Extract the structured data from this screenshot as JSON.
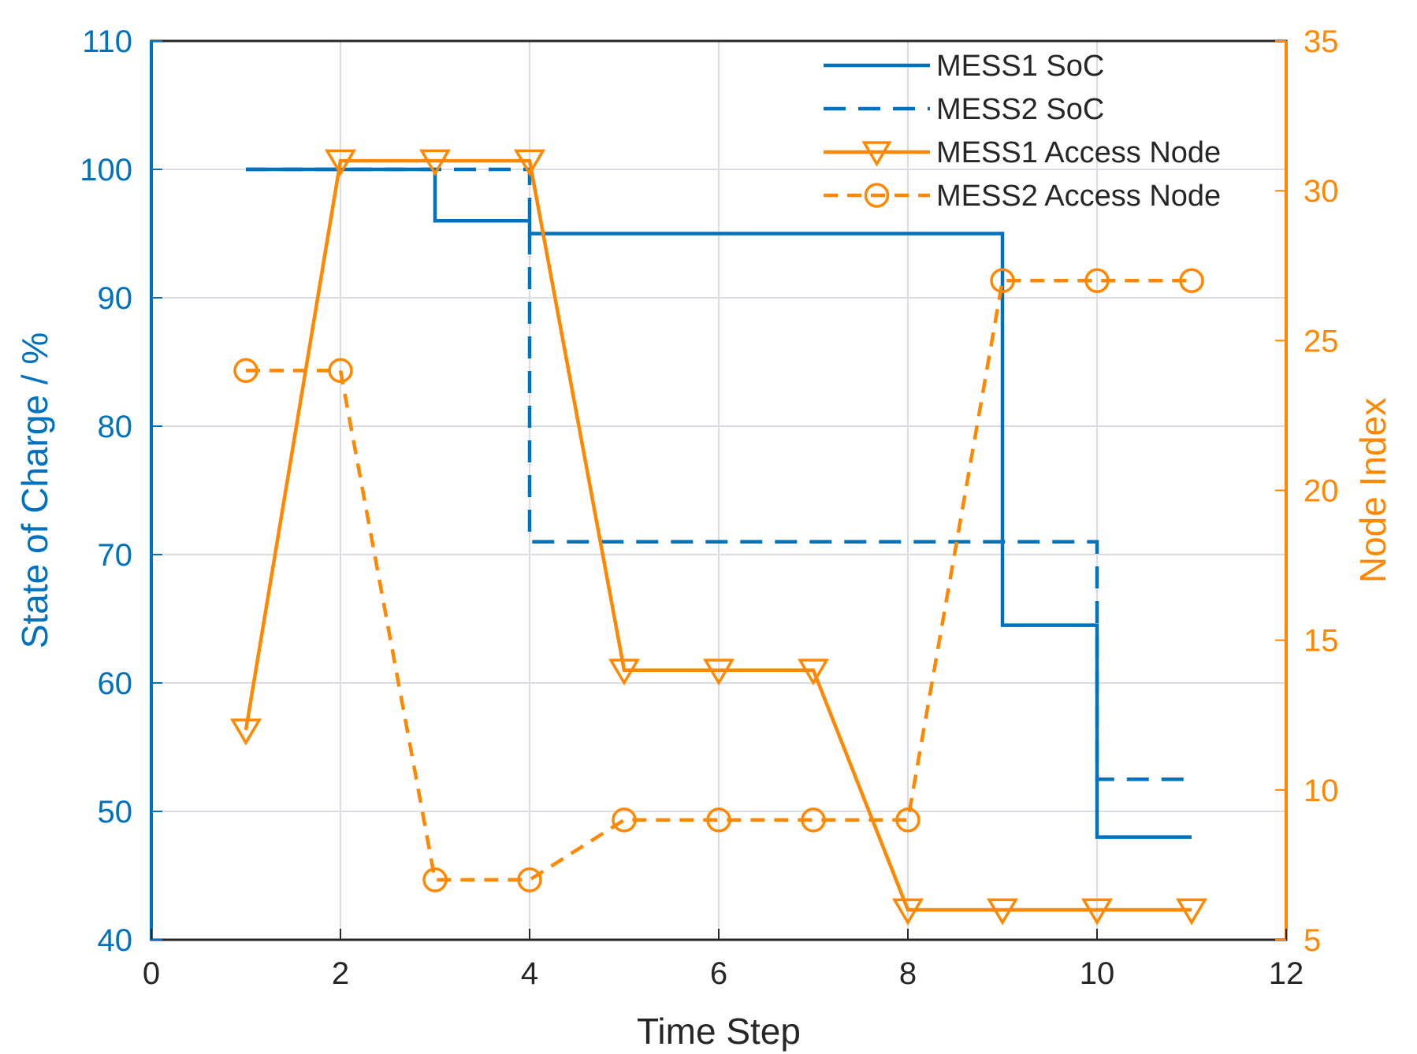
{
  "colors": {
    "soc": "#0072BD",
    "node": "#FF8800",
    "grid": "#d9dde3",
    "axis": "#262626",
    "text": "#262626"
  },
  "chart_data": {
    "type": "line",
    "xlabel": "Time Step",
    "ylabel_left": "State of Charge / %",
    "ylabel_right": "Node Index",
    "xlim": [
      0,
      12
    ],
    "ylim_left": [
      40,
      110
    ],
    "ylim_right": [
      5,
      35
    ],
    "xticks": [
      "0",
      "2",
      "4",
      "6",
      "8",
      "10",
      "12"
    ],
    "yticks_left": [
      "40",
      "50",
      "60",
      "70",
      "80",
      "90",
      "100",
      "110"
    ],
    "yticks_right": [
      "5",
      "10",
      "15",
      "20",
      "25",
      "30",
      "35"
    ],
    "grid": true,
    "legend_position": "top-right",
    "series": [
      {
        "name": "MESS1 SoC",
        "axis": "left",
        "style": "solid",
        "step": true,
        "marker": "none",
        "x": [
          1,
          2,
          3,
          4,
          5,
          6,
          7,
          8,
          9,
          10,
          11
        ],
        "y": [
          100,
          100,
          96,
          95,
          95,
          95,
          95,
          95,
          64.5,
          48,
          48
        ]
      },
      {
        "name": "MESS2 SoC",
        "axis": "left",
        "style": "dashed",
        "step": true,
        "marker": "none",
        "x": [
          1,
          2,
          3,
          4,
          5,
          6,
          7,
          8,
          9,
          10,
          11
        ],
        "y": [
          100,
          100,
          100,
          71,
          71,
          71,
          71,
          71,
          71,
          52.5,
          52.5
        ]
      },
      {
        "name": "MESS1 Access Node",
        "axis": "right",
        "style": "solid",
        "step": false,
        "marker": "triangle-down",
        "x": [
          1,
          2,
          3,
          4,
          5,
          6,
          7,
          8,
          9,
          10,
          11
        ],
        "y": [
          12,
          31,
          31,
          31,
          14,
          14,
          14,
          6,
          6,
          6,
          6
        ]
      },
      {
        "name": "MESS2 Access Node",
        "axis": "right",
        "style": "dashed",
        "step": false,
        "marker": "circle",
        "x": [
          1,
          2,
          3,
          4,
          5,
          6,
          7,
          8,
          9,
          10,
          11
        ],
        "y": [
          24,
          24,
          7,
          7,
          9,
          9,
          9,
          9,
          27,
          27,
          27
        ]
      }
    ]
  }
}
